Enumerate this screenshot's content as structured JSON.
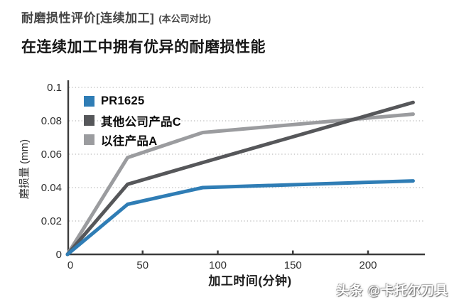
{
  "page": {
    "title": "耐磨损性评价[连续加工]",
    "title_note": "(本公司对比)",
    "subtitle": "在连续加工中拥有优异的耐磨损性能",
    "watermark": "头条 @卡托尔刀具"
  },
  "colors": {
    "accent_blue": "#2f7db5",
    "dark_gray_series": "#56575a",
    "light_gray_series": "#9b9c9f",
    "axis": "#3c3c3c",
    "grid": "#c6c6c6",
    "tick_text": "#2f2f2f",
    "title_text": "#454545",
    "subtitle_text": "#171717"
  },
  "chart_data": {
    "type": "line",
    "title": "",
    "xlabel": "加工时间(分钟)",
    "ylabel": "磨损量 (mm)",
    "x": [
      0,
      40,
      90,
      230
    ],
    "series": [
      {
        "name": "PR1625",
        "color": "#2f7db5",
        "values": [
          0,
          0.03,
          0.04,
          0.044
        ]
      },
      {
        "name": "其他公司产品C",
        "color": "#56575a",
        "values": [
          0,
          0.042,
          0.055,
          0.091
        ]
      },
      {
        "name": "以往产品A",
        "color": "#9b9c9f",
        "values": [
          0,
          0.058,
          0.073,
          0.084
        ]
      }
    ],
    "xticks": [
      0,
      50,
      100,
      150,
      200
    ],
    "yticks": [
      0,
      0.02,
      0.04,
      0.06,
      0.08,
      0.1
    ],
    "ytick_labels": [
      "0",
      "0.02",
      "0.04",
      "0.06",
      "0.08",
      "0.1"
    ],
    "xlim": [
      0,
      238
    ],
    "ylim": [
      0,
      0.105
    ],
    "grid": "horizontal-dotted",
    "legend_position": "top-left-inside"
  }
}
